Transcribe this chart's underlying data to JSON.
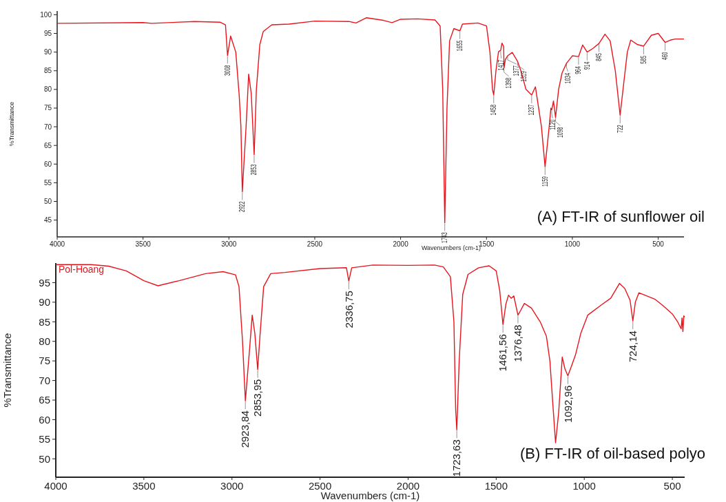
{
  "chart_data": [
    {
      "type": "line",
      "title": "(A) FT-IR of sunflower oil",
      "xlabel": "Wavenumbers (cm-1)",
      "ylabel": "%Transmittance",
      "xlim": [
        4000,
        350
      ],
      "ylim": [
        40.5,
        101
      ],
      "xticks": [
        4000,
        3500,
        3000,
        2500,
        2000,
        1500,
        1000,
        500
      ],
      "yticks": [
        45,
        50,
        55,
        60,
        65,
        70,
        75,
        80,
        85,
        90,
        95,
        100
      ],
      "grid": false,
      "series": [
        {
          "color": "#e8141c",
          "x": [
            4000,
            3500,
            3450,
            3200,
            3050,
            3020,
            3008,
            2990,
            2960,
            2940,
            2930,
            2922,
            2900,
            2885,
            2870,
            2853,
            2840,
            2820,
            2800,
            2750,
            2650,
            2500,
            2300,
            2260,
            2200,
            2100,
            2050,
            2000,
            1900,
            1800,
            1770,
            1755,
            1743,
            1730,
            1715,
            1690,
            1655,
            1640,
            1550,
            1500,
            1480,
            1465,
            1458,
            1445,
            1430,
            1417,
            1410,
            1400,
            1398,
            1390,
            1377,
            1350,
            1319,
            1300,
            1270,
            1237,
            1215,
            1180,
            1159,
            1135,
            1125,
            1120,
            1110,
            1098,
            1080,
            1060,
            1034,
            1000,
            964,
            940,
            914,
            880,
            845,
            810,
            780,
            750,
            722,
            700,
            680,
            660,
            620,
            585,
            540,
            500,
            460,
            430,
            400,
            350
          ],
          "values": [
            97.7,
            97.9,
            97.7,
            98.2,
            98.0,
            97.3,
            89.1,
            94.3,
            90,
            78.4,
            70,
            52.6,
            70,
            84.1,
            79,
            62.5,
            80,
            92,
            95.5,
            97.3,
            97.5,
            98.3,
            98.2,
            97.8,
            99.2,
            98.5,
            97.9,
            98.8,
            98.9,
            98.6,
            97,
            80,
            44.3,
            75,
            93,
            96.3,
            95.7,
            97.5,
            97.8,
            97,
            90,
            80,
            78.5,
            85,
            90.1,
            90.5,
            92.4,
            91.5,
            85.7,
            88,
            89,
            89.9,
            87.5,
            85,
            80,
            78.5,
            80.7,
            70,
            59.3,
            70,
            75,
            74.5,
            76.9,
            72.5,
            80,
            84.4,
            87,
            89,
            88.8,
            91.9,
            90,
            91,
            92.3,
            94.8,
            93,
            85,
            73.1,
            82,
            90,
            93.2,
            92,
            91.6,
            94.5,
            95,
            92.6,
            93.2,
            93.5,
            93.5
          ]
        }
      ],
      "annotations": [
        {
          "text": "3008",
          "x": 3008,
          "y": 89.1
        },
        {
          "text": "2922",
          "x": 2922,
          "y": 52.6
        },
        {
          "text": "2853",
          "x": 2853,
          "y": 62.5
        },
        {
          "text": "1743",
          "x": 1743,
          "y": 44.3
        },
        {
          "text": "1655",
          "x": 1655,
          "y": 95.7
        },
        {
          "text": "1458",
          "x": 1458,
          "y": 78.5
        },
        {
          "text": "1417",
          "x": 1417,
          "y": 90.5
        },
        {
          "text": "1398",
          "x": 1398,
          "y": 85.7
        },
        {
          "text": "1377",
          "x": 1377,
          "y": 89
        },
        {
          "text": "1319",
          "x": 1319,
          "y": 87.5
        },
        {
          "text": "1237",
          "x": 1237,
          "y": 78.5
        },
        {
          "text": "1159",
          "x": 1159,
          "y": 59.3
        },
        {
          "text": "1120",
          "x": 1120,
          "y": 74.5
        },
        {
          "text": "1098",
          "x": 1098,
          "y": 72.5
        },
        {
          "text": "1034",
          "x": 1034,
          "y": 87
        },
        {
          "text": "964",
          "x": 964,
          "y": 88.8
        },
        {
          "text": "914",
          "x": 914,
          "y": 90
        },
        {
          "text": "845",
          "x": 845,
          "y": 92.3
        },
        {
          "text": "722",
          "x": 722,
          "y": 73.1
        },
        {
          "text": "585",
          "x": 585,
          "y": 91.6
        },
        {
          "text": "460",
          "x": 460,
          "y": 92.6
        }
      ]
    },
    {
      "type": "line",
      "title": "(B) FT-IR of oil-based polyo",
      "xlabel": "Wavenumbers (cm-1)",
      "ylabel": "%Transmittance",
      "xlim": [
        4000,
        430
      ],
      "ylim": [
        45.3,
        100
      ],
      "xticks": [
        4000,
        3500,
        3000,
        2500,
        2000,
        1500,
        1000,
        500
      ],
      "yticks": [
        50,
        55,
        60,
        65,
        70,
        75,
        80,
        85,
        90,
        95
      ],
      "grid": false,
      "legend": "top left",
      "series": [
        {
          "name": "Pol-Hoang",
          "color": "#e8141c",
          "x": [
            4000,
            3800,
            3700,
            3600,
            3500,
            3420,
            3300,
            3150,
            3050,
            2980,
            2960,
            2940,
            2923.84,
            2900,
            2885,
            2870,
            2853.95,
            2840,
            2820,
            2780,
            2700,
            2500,
            2350,
            2336.75,
            2320,
            2200,
            2000,
            1850,
            1800,
            1760,
            1740,
            1730,
            1723.63,
            1710,
            1690,
            1660,
            1600,
            1540,
            1500,
            1480,
            1461.56,
            1445,
            1430,
            1415,
            1400,
            1376.48,
            1360,
            1340,
            1300,
            1250,
            1215,
            1195,
            1180,
            1163,
            1145,
            1125,
            1110,
            1092.96,
            1070,
            1050,
            1020,
            980,
            900,
            850,
            800,
            770,
            740,
            724.14,
            710,
            690,
            600,
            550,
            500,
            470,
            450,
            445,
            440,
            435,
            430
          ],
          "values": [
            99.6,
            99.6,
            99.2,
            98,
            95.5,
            94.2,
            95.5,
            97.3,
            97.8,
            97,
            94,
            80,
            64.8,
            78,
            86.7,
            82,
            72.8,
            82,
            94,
            97.3,
            97.6,
            98.6,
            98.8,
            95.4,
            98.8,
            99.5,
            99.4,
            99.5,
            99,
            96.5,
            85,
            62.5,
            57.4,
            75,
            92,
            97.1,
            98.8,
            99.3,
            98,
            93,
            84.3,
            89.5,
            91.8,
            91,
            91.6,
            86.7,
            88,
            89.7,
            88.5,
            85,
            81.3,
            75,
            65,
            54.1,
            62,
            76,
            73,
            71.2,
            74,
            76.5,
            82,
            86.7,
            89.4,
            91,
            94.8,
            93.5,
            90.5,
            85.2,
            90,
            92.4,
            90.8,
            89,
            87,
            85,
            83.2,
            86,
            82.5,
            86.5,
            86.2
          ]
        }
      ],
      "annotations": [
        {
          "text": "2923,84",
          "x": 2923.84,
          "y": 64.8
        },
        {
          "text": "2853,95",
          "x": 2853.95,
          "y": 72.8
        },
        {
          "text": "2336,75",
          "x": 2336.75,
          "y": 95.4
        },
        {
          "text": "1723,63",
          "x": 1723.63,
          "y": 57.4
        },
        {
          "text": "1461,56",
          "x": 1461.56,
          "y": 84.3
        },
        {
          "text": "1376,48",
          "x": 1376.48,
          "y": 86.7
        },
        {
          "text": "1092,96",
          "x": 1092.96,
          "y": 71.2
        },
        {
          "text": "724,14",
          "x": 724.14,
          "y": 85.2
        }
      ]
    }
  ]
}
